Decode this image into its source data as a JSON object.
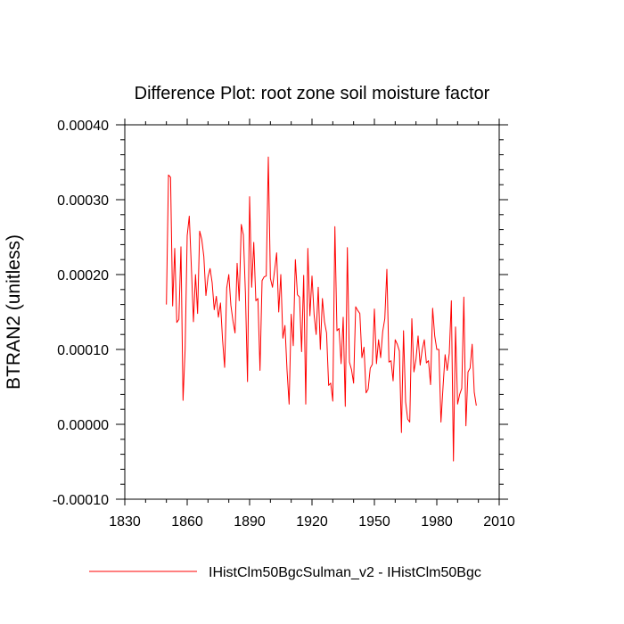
{
  "chart_data": {
    "type": "line",
    "title": "Difference Plot: root zone soil moisture factor",
    "xlabel": "",
    "ylabel": "BTRAN2  (unitless)",
    "xlim": [
      1830,
      2010
    ],
    "ylim": [
      -0.0001,
      0.0004
    ],
    "x_ticks": [
      1830,
      1860,
      1890,
      1920,
      1950,
      1980,
      2010
    ],
    "y_ticks": [
      -0.0001,
      0,
      0.0001,
      0.0002,
      0.0003,
      0.0004
    ],
    "x_tick_labels": [
      "1830",
      "1860",
      "1890",
      "1920",
      "1950",
      "1980",
      "2010"
    ],
    "y_tick_labels": [
      "-0.00010",
      "0.00000",
      "0.00010",
      "0.00020",
      "0.00030",
      "0.00040"
    ],
    "grid": false,
    "legend_position": "bottom",
    "series": [
      {
        "name": "IHistClm50BgcSulman_v2 - IHistClm50Bgc",
        "color": "#ff0000",
        "x_start": 1850,
        "x_step": 1,
        "values": [
          0.00016,
          0.000333,
          0.00033,
          0.000158,
          0.000235,
          0.000136,
          0.00014,
          0.000237,
          3.2e-05,
          0.0001,
          0.000252,
          0.000278,
          0.00021,
          0.000137,
          0.0002,
          0.000148,
          0.000258,
          0.000247,
          0.000224,
          0.000172,
          0.000197,
          0.000208,
          0.000189,
          0.000153,
          0.000171,
          0.000143,
          0.000162,
          0.000113,
          7.6e-05,
          0.000182,
          0.0002,
          0.000159,
          0.000138,
          0.000122,
          0.000215,
          0.000165,
          0.000267,
          0.000253,
          0.000175,
          5.7e-05,
          0.000304,
          0.000183,
          0.000243,
          0.000165,
          0.000168,
          7.2e-05,
          0.000192,
          0.000197,
          0.000198,
          0.000357,
          0.000195,
          0.000183,
          0.000205,
          0.000229,
          0.00015,
          0.0002,
          0.000115,
          0.000132,
          7.2e-05,
          2.7e-05,
          0.000147,
          0.000105,
          0.00022,
          0.000173,
          0.00017,
          9.7e-05,
          0.000199,
          2.7e-05,
          0.000235,
          0.000145,
          0.000198,
          0.000147,
          0.00012,
          0.000183,
          0.0001,
          0.000168,
          0.000137,
          0.000122,
          5.2e-05,
          5.5e-05,
          3.1e-05,
          0.000264,
          0.000125,
          0.000128,
          8.1e-05,
          0.000143,
          2.4e-05,
          0.000236,
          8.3e-05,
          7.3e-05,
          5.5e-05,
          0.000157,
          0.000152,
          0.000148,
          8.9e-05,
          0.000103,
          4.2e-05,
          4.7e-05,
          7.5e-05,
          8e-05,
          0.000154,
          8.1e-05,
          0.000113,
          8.9e-05,
          0.000124,
          0.000141,
          0.000207,
          8.3e-05,
          8.5e-05,
          5.8e-05,
          0.000113,
          0.000107,
          9.8e-05,
          -1.1e-05,
          0.000125,
          3e-05,
          7e-06,
          3e-06,
          0.000141,
          7e-05,
          8.7e-05,
          0.000118,
          7.9e-05,
          0.0001,
          0.000113,
          8.2e-05,
          8.5e-05,
          5.3e-05,
          0.000155,
          0.000118,
          0.0001,
          0.0001,
          3e-06,
          5e-05,
          9.3e-05,
          7.2e-05,
          9.5e-05,
          0.000165,
          -4.9e-05,
          0.00013,
          2.7e-05,
          4e-05,
          4.8e-05,
          0.00017,
          -2e-06,
          7e-05,
          7.5e-05,
          0.000107,
          4.3e-05,
          2.5e-05
        ]
      }
    ]
  }
}
